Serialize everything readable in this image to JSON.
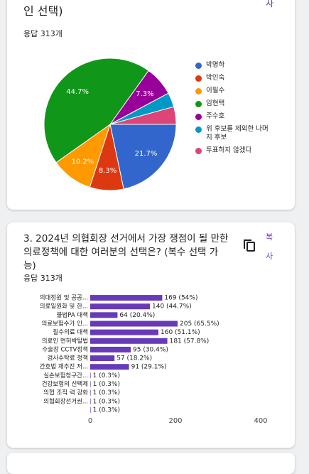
{
  "page": {
    "top_card": {
      "title_tail": "인 선택)",
      "copy_label": "사",
      "responses": "응답 313개"
    },
    "question_card": {
      "title": "3. 2024년 의협회장 선거에서 가장 쟁점이 될 만한 의료정책에 대한 여러분의 선택은? (복수 선택 가능)",
      "copy_labels": [
        "복",
        "사"
      ],
      "responses": "응답 313개"
    }
  },
  "chart_data": [
    {
      "type": "pie",
      "categories": [
        "박명하",
        "박인숙",
        "이필수",
        "임현택",
        "주수호",
        "위 후보를 제외한 나머지 후보",
        "투표하지 않겠다"
      ],
      "values": [
        21.7,
        8.3,
        10.2,
        44.7,
        7.3,
        3.5,
        4.3
      ],
      "value_labels": [
        "21.7%",
        "8.3%",
        "10.2%",
        "44.7%",
        "7.3%",
        null,
        null
      ],
      "colors": [
        "#3366cc",
        "#dc3912",
        "#ff9900",
        "#109618",
        "#990099",
        "#0099c6",
        "#dd4477"
      ]
    },
    {
      "type": "bar",
      "orientation": "horizontal",
      "categories": [
        "의대정원 및 공공...",
        "의료일원화 및 한...",
        "불법PA 대책",
        "의료보험수가 인...",
        "필수의료 대책",
        "의료인 면허박탈법",
        "수술장 CCTV정책",
        "검사수탁료 정책",
        "간호법 재추진 저...",
        "실손보험청구간...",
        "건강보험의 선택제",
        "의협 조직 력 강화",
        "의협회장선거권...",
        null
      ],
      "values": [
        169,
        140,
        64,
        205,
        160,
        181,
        95,
        57,
        91,
        1,
        1,
        1,
        1,
        1
      ],
      "value_labels": [
        "169 (54%)",
        "140 (44.7%)",
        "64 (20.4%)",
        "205 (65.5%)",
        "160 (51.1%)",
        "181 (57.8%)",
        "95 (30.4%)",
        "57 (18.2%)",
        "91 (29.1%)",
        "1 (0.3%)",
        "1 (0.3%)",
        "1 (0.3%)",
        "1 (0.3%)",
        "1 (0.3%)"
      ],
      "color": "#673ab7",
      "xlim": [
        0,
        400
      ],
      "xticks": [
        0,
        200,
        400
      ],
      "grid": false
    }
  ]
}
